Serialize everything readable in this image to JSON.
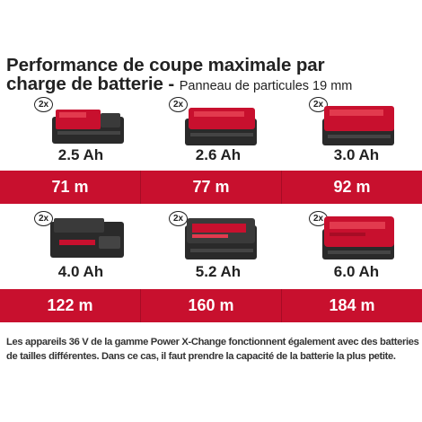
{
  "title": {
    "main_line1": "Performance de coupe maximale par",
    "main_line2": "charge de batterie - ",
    "subtitle": "Panneau de particules 19 mm"
  },
  "badge_label": "2x",
  "row1": [
    {
      "capacity": "2.5 Ah",
      "performance": "71 m"
    },
    {
      "capacity": "2.6 Ah",
      "performance": "77 m"
    },
    {
      "capacity": "3.0 Ah",
      "performance": "92 m"
    }
  ],
  "row2": [
    {
      "capacity": "4.0 Ah",
      "performance": "122 m"
    },
    {
      "capacity": "5.2 Ah",
      "performance": "160 m"
    },
    {
      "capacity": "6.0 Ah",
      "performance": "184 m"
    }
  ],
  "footnote": "Les appareils 36 V de la gamme Power X-Change fonctionnent également avec des batteries de tailles différentes. Dans ce cas, il faut prendre la capacité de la batterie la plus petite.",
  "colors": {
    "accent": "#c8102e",
    "battery_dark": "#2a2a2a"
  }
}
